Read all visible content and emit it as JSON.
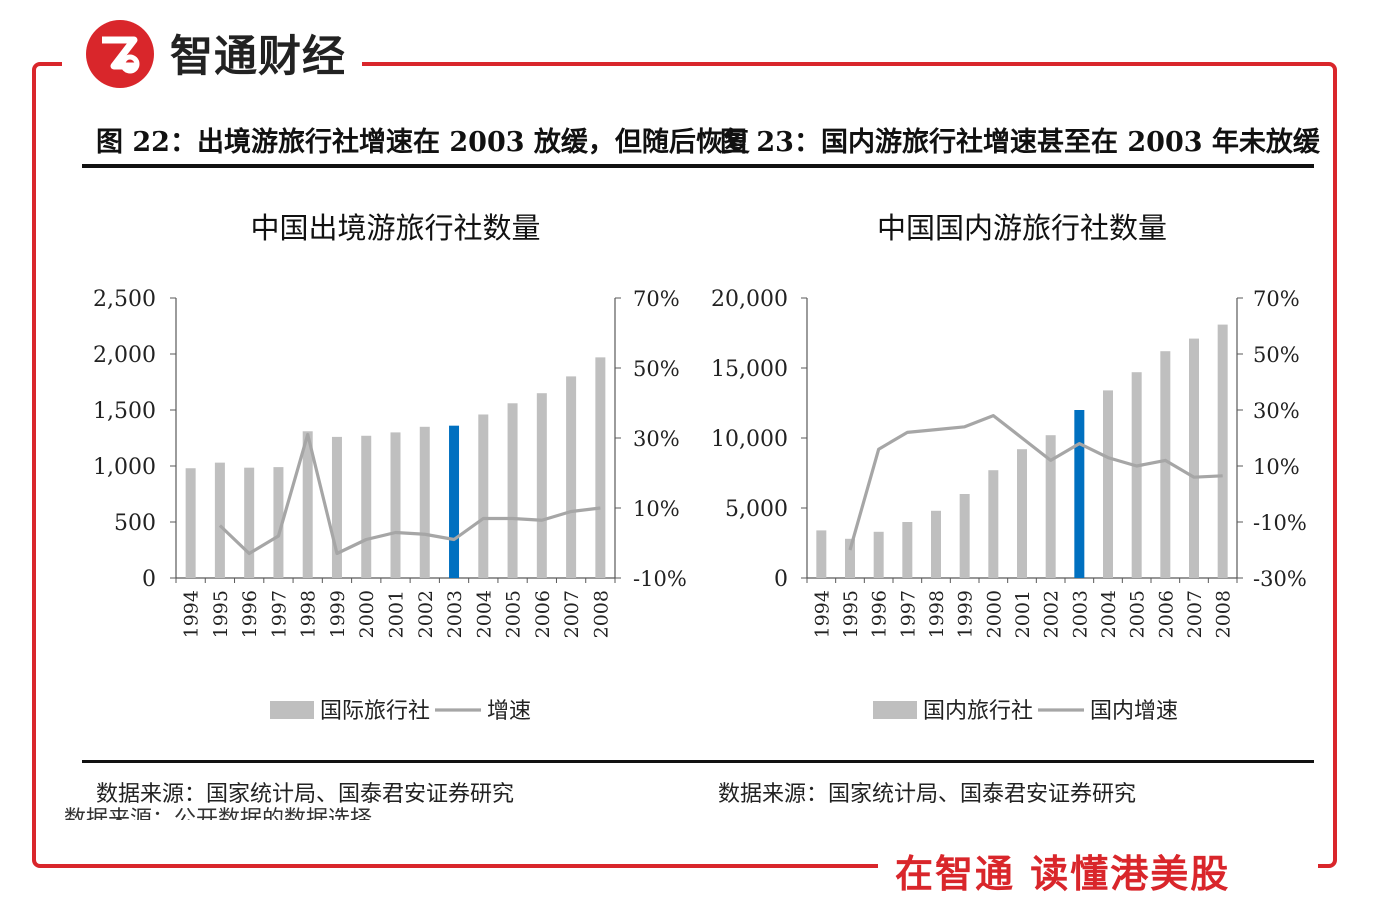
{
  "brand": {
    "name": "智通财经",
    "slogan": "在智通 读懂港美股",
    "accent": "#d9262b"
  },
  "figures": [
    {
      "title": "图 22：出境游旅行社增速在 2003 放缓，但随后恢复"
    },
    {
      "title": "图 23：国内游旅行社增速甚至在 2003 年未放缓"
    }
  ],
  "sources": [
    "数据来源：国家统计局、国泰君安证券研究",
    "数据来源：国家统计局、国泰君安证券研究"
  ],
  "cropped_text": "数据来源：公开数据的数据选择",
  "colors": {
    "bar": "#bfbfbf",
    "highlight": "#0070c0",
    "line": "#a6a6a6",
    "axis": "#595959"
  },
  "chart_data": [
    {
      "type": "bar",
      "title": "中国出境游旅行社数量",
      "categories": [
        "1994",
        "1995",
        "1996",
        "1997",
        "1998",
        "1999",
        "2000",
        "2001",
        "2002",
        "2003",
        "2004",
        "2005",
        "2006",
        "2007",
        "2008"
      ],
      "series": [
        {
          "name": "国际旅行社",
          "axis": "left",
          "type": "bar",
          "values": [
            980,
            1030,
            985,
            990,
            1310,
            1260,
            1270,
            1300,
            1350,
            1360,
            1460,
            1560,
            1650,
            1800,
            1970
          ]
        },
        {
          "name": "增速",
          "axis": "right",
          "type": "line",
          "values": [
            null,
            5,
            -3,
            2,
            31,
            -3,
            1,
            3,
            2.5,
            1,
            7,
            7,
            6.5,
            9,
            10
          ]
        }
      ],
      "highlight_category": "2003",
      "left_axis": {
        "min": 0,
        "max": 2500,
        "ticks": [
          0,
          500,
          1000,
          1500,
          2000,
          2500
        ],
        "labels": [
          "0",
          "500",
          "1,000",
          "1,500",
          "2,000",
          "2,500"
        ]
      },
      "right_axis": {
        "min": -10,
        "max": 70,
        "ticks": [
          -10,
          10,
          30,
          50,
          70
        ],
        "labels": [
          "-10%",
          "10%",
          "30%",
          "50%",
          "70%"
        ]
      },
      "legend": [
        "国际旅行社",
        "增速"
      ],
      "legend_position": "bottom"
    },
    {
      "type": "bar",
      "title": "中国国内游旅行社数量",
      "categories": [
        "1994",
        "1995",
        "1996",
        "1997",
        "1998",
        "1999",
        "2000",
        "2001",
        "2002",
        "2003",
        "2004",
        "2005",
        "2006",
        "2007",
        "2008"
      ],
      "series": [
        {
          "name": "国内旅行社",
          "axis": "left",
          "type": "bar",
          "values": [
            3400,
            2800,
            3300,
            4000,
            4800,
            6000,
            7700,
            9200,
            10200,
            12000,
            13400,
            14700,
            16200,
            17100,
            18100
          ]
        },
        {
          "name": "国内增速",
          "axis": "right",
          "type": "line",
          "values": [
            null,
            -20,
            16,
            22,
            23,
            24,
            28,
            20,
            12,
            18,
            13,
            10,
            12,
            6,
            6.5
          ]
        }
      ],
      "highlight_category": "2003",
      "left_axis": {
        "min": 0,
        "max": 20000,
        "ticks": [
          0,
          5000,
          10000,
          15000,
          20000
        ],
        "labels": [
          "0",
          "5,000",
          "10,000",
          "15,000",
          "20,000"
        ]
      },
      "right_axis": {
        "min": -30,
        "max": 70,
        "ticks": [
          -30,
          -10,
          10,
          30,
          50,
          70
        ],
        "labels": [
          "-30%",
          "-10%",
          "10%",
          "30%",
          "50%",
          "70%"
        ]
      },
      "legend": [
        "国内旅行社",
        "国内增速"
      ],
      "legend_position": "bottom"
    }
  ]
}
